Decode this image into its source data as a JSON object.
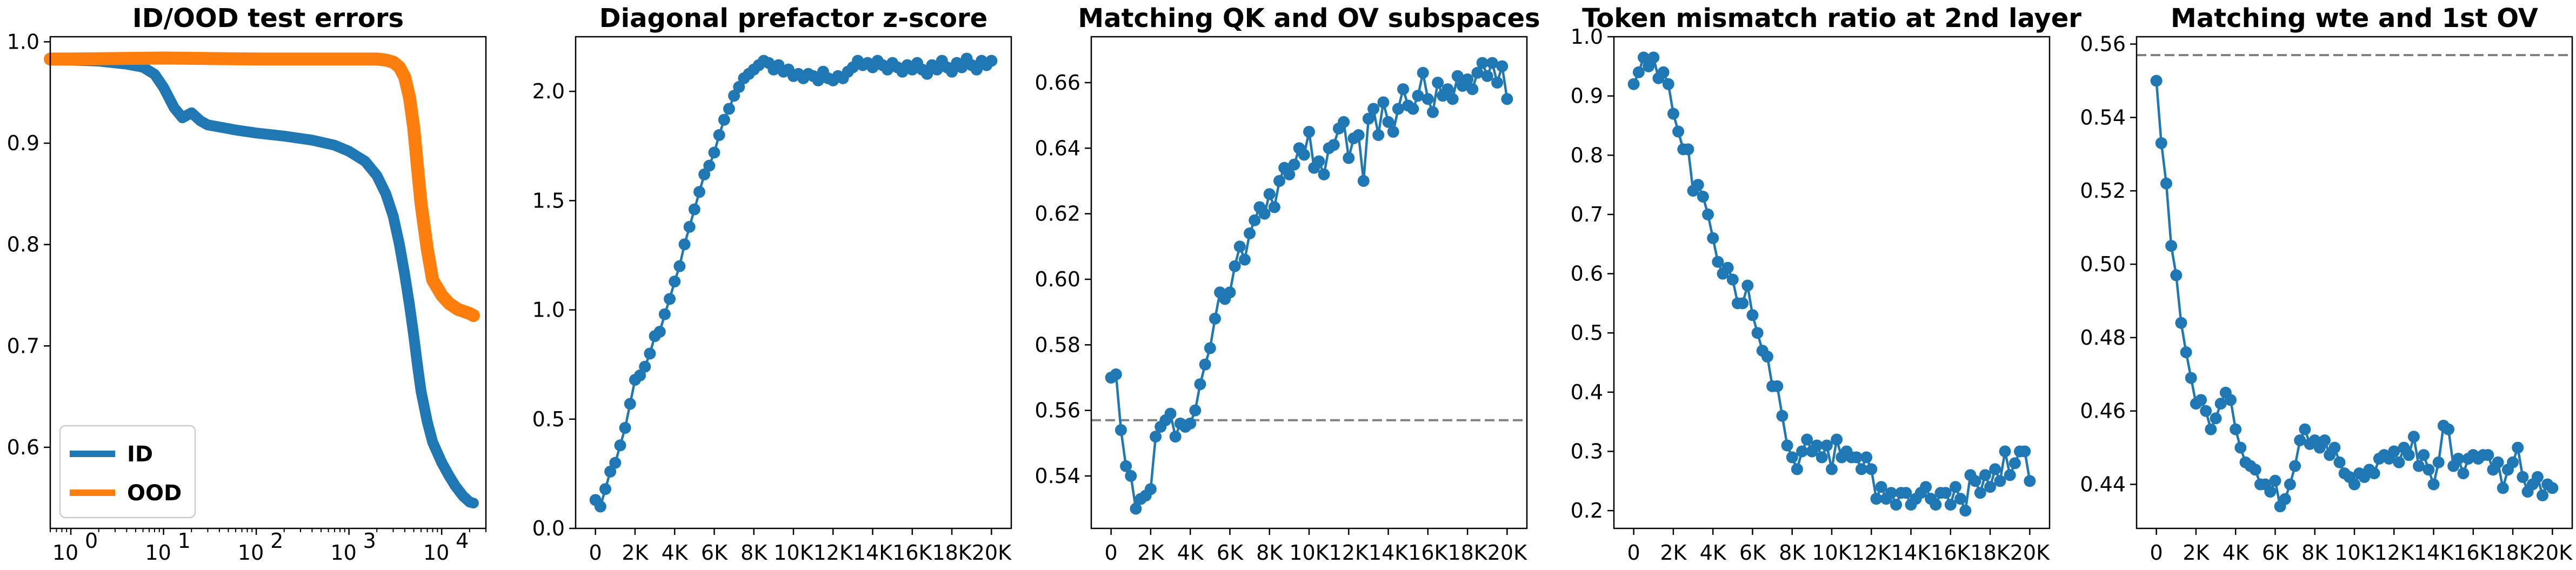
{
  "chart_data": [
    {
      "type": "line",
      "title": "ID/OOD test errors",
      "xscale": "log",
      "xlim": [
        0.6,
        30000
      ],
      "ylim": [
        0.52,
        1.005
      ],
      "xticks": [
        1,
        10,
        100,
        1000,
        10000
      ],
      "xtick_labels": [
        "10",
        "10",
        "10",
        "10",
        "10"
      ],
      "xtick_exponents": [
        "0",
        "1",
        "2",
        "3",
        "4"
      ],
      "yticks": [
        0.6,
        0.7,
        0.8,
        0.9,
        1.0
      ],
      "ytick_labels": [
        "0.6",
        "0.7",
        "0.8",
        "0.9",
        "1.0"
      ],
      "legend": "lower-left",
      "series": [
        {
          "name": "ID",
          "color": "#1f77b4",
          "x": [
            0.6,
            1,
            2,
            4,
            6,
            8,
            10,
            13,
            16,
            20,
            25,
            30,
            40,
            60,
            100,
            200,
            400,
            700,
            1000,
            1500,
            2000,
            2500,
            3000,
            3500,
            4000,
            4500,
            5000,
            5500,
            6000,
            7000,
            8000,
            10000,
            12000,
            14000,
            17000,
            20000,
            22000
          ],
          "y": [
            0.982,
            0.982,
            0.981,
            0.978,
            0.975,
            0.968,
            0.955,
            0.935,
            0.925,
            0.93,
            0.922,
            0.918,
            0.916,
            0.913,
            0.91,
            0.907,
            0.903,
            0.898,
            0.892,
            0.882,
            0.868,
            0.85,
            0.828,
            0.8,
            0.77,
            0.74,
            0.71,
            0.68,
            0.655,
            0.625,
            0.605,
            0.585,
            0.572,
            0.562,
            0.552,
            0.546,
            0.545
          ]
        },
        {
          "name": "OOD",
          "color": "#ff7f0e",
          "x": [
            0.6,
            1,
            10,
            100,
            500,
            1000,
            2000,
            2500,
            3000,
            3500,
            4000,
            4500,
            5000,
            5500,
            6000,
            7000,
            8000,
            10000,
            12000,
            15000,
            20000,
            22000
          ],
          "y": [
            0.983,
            0.983,
            0.984,
            0.983,
            0.983,
            0.983,
            0.983,
            0.982,
            0.98,
            0.975,
            0.965,
            0.945,
            0.915,
            0.875,
            0.84,
            0.795,
            0.765,
            0.75,
            0.742,
            0.736,
            0.732,
            0.73
          ]
        }
      ]
    },
    {
      "type": "line",
      "title": "Diagonal prefactor z-score",
      "xlim": [
        -1000,
        21000
      ],
      "ylim": [
        0.0,
        2.25
      ],
      "xticks": [
        0,
        2000,
        4000,
        6000,
        8000,
        10000,
        12000,
        14000,
        16000,
        18000,
        20000
      ],
      "xtick_labels": [
        "0",
        "2K",
        "4K",
        "6K",
        "8K",
        "10K",
        "12K",
        "14K",
        "16K",
        "18K",
        "20K"
      ],
      "yticks": [
        0.0,
        0.5,
        1.0,
        1.5,
        2.0
      ],
      "ytick_labels": [
        "0.0",
        "0.5",
        "1.0",
        "1.5",
        "2.0"
      ],
      "series": [
        {
          "color": "#1f77b4",
          "x": [
            0,
            250,
            500,
            750,
            1000,
            1250,
            1500,
            1750,
            2000,
            2250,
            2500,
            2750,
            3000,
            3250,
            3500,
            3750,
            4000,
            4250,
            4500,
            4750,
            5000,
            5250,
            5500,
            5750,
            6000,
            6250,
            6500,
            6750,
            7000,
            7250,
            7500,
            7750,
            8000,
            8250,
            8500,
            8750,
            9000,
            9250,
            9500,
            9750,
            10000,
            10250,
            10500,
            10750,
            11000,
            11250,
            11500,
            11750,
            12000,
            12250,
            12500,
            12750,
            13000,
            13250,
            13500,
            13750,
            14000,
            14250,
            14500,
            14750,
            15000,
            15250,
            15500,
            15750,
            16000,
            16250,
            16500,
            16750,
            17000,
            17250,
            17500,
            17750,
            18000,
            18250,
            18500,
            18750,
            19000,
            19250,
            19500,
            19750,
            20000
          ],
          "y": [
            0.13,
            0.1,
            0.18,
            0.26,
            0.3,
            0.38,
            0.46,
            0.57,
            0.68,
            0.7,
            0.74,
            0.8,
            0.88,
            0.9,
            0.98,
            1.05,
            1.13,
            1.2,
            1.3,
            1.38,
            1.46,
            1.54,
            1.62,
            1.66,
            1.72,
            1.8,
            1.87,
            1.92,
            1.98,
            2.02,
            2.06,
            2.08,
            2.1,
            2.12,
            2.14,
            2.13,
            2.1,
            2.12,
            2.09,
            2.1,
            2.07,
            2.08,
            2.06,
            2.08,
            2.07,
            2.05,
            2.09,
            2.06,
            2.05,
            2.07,
            2.06,
            2.09,
            2.11,
            2.14,
            2.12,
            2.13,
            2.11,
            2.14,
            2.12,
            2.1,
            2.13,
            2.11,
            2.09,
            2.12,
            2.1,
            2.13,
            2.1,
            2.08,
            2.12,
            2.1,
            2.14,
            2.11,
            2.09,
            2.13,
            2.11,
            2.15,
            2.12,
            2.1,
            2.14,
            2.12,
            2.14
          ]
        }
      ]
    },
    {
      "type": "line",
      "title": "Matching QK and OV subspaces",
      "xlim": [
        -1000,
        21000
      ],
      "ylim": [
        0.524,
        0.674
      ],
      "xticks": [
        0,
        2000,
        4000,
        6000,
        8000,
        10000,
        12000,
        14000,
        16000,
        18000,
        20000
      ],
      "xtick_labels": [
        "0",
        "2K",
        "4K",
        "6K",
        "8K",
        "10K",
        "12K",
        "14K",
        "16K",
        "18K",
        "20K"
      ],
      "yticks": [
        0.54,
        0.56,
        0.58,
        0.6,
        0.62,
        0.64,
        0.66
      ],
      "ytick_labels": [
        "0.54",
        "0.56",
        "0.58",
        "0.60",
        "0.62",
        "0.64",
        "0.66"
      ],
      "baseline": 0.557,
      "series": [
        {
          "color": "#1f77b4",
          "x": [
            0,
            250,
            500,
            750,
            1000,
            1250,
            1500,
            1750,
            2000,
            2250,
            2500,
            2750,
            3000,
            3250,
            3500,
            3750,
            4000,
            4250,
            4500,
            4750,
            5000,
            5250,
            5500,
            5750,
            6000,
            6250,
            6500,
            6750,
            7000,
            7250,
            7500,
            7750,
            8000,
            8250,
            8500,
            8750,
            9000,
            9250,
            9500,
            9750,
            10000,
            10250,
            10500,
            10750,
            11000,
            11250,
            11500,
            11750,
            12000,
            12250,
            12500,
            12750,
            13000,
            13250,
            13500,
            13750,
            14000,
            14250,
            14500,
            14750,
            15000,
            15250,
            15500,
            15750,
            16000,
            16250,
            16500,
            16750,
            17000,
            17250,
            17500,
            17750,
            18000,
            18250,
            18500,
            18750,
            19000,
            19250,
            19500,
            19750,
            20000
          ],
          "y": [
            0.57,
            0.571,
            0.554,
            0.543,
            0.54,
            0.53,
            0.533,
            0.534,
            0.536,
            0.552,
            0.555,
            0.557,
            0.559,
            0.552,
            0.556,
            0.555,
            0.556,
            0.56,
            0.568,
            0.574,
            0.579,
            0.588,
            0.596,
            0.594,
            0.596,
            0.604,
            0.61,
            0.606,
            0.614,
            0.618,
            0.622,
            0.62,
            0.626,
            0.622,
            0.63,
            0.634,
            0.632,
            0.635,
            0.64,
            0.638,
            0.645,
            0.634,
            0.636,
            0.632,
            0.64,
            0.641,
            0.646,
            0.648,
            0.637,
            0.643,
            0.644,
            0.63,
            0.649,
            0.652,
            0.644,
            0.654,
            0.648,
            0.645,
            0.652,
            0.658,
            0.653,
            0.652,
            0.656,
            0.663,
            0.655,
            0.651,
            0.66,
            0.656,
            0.658,
            0.655,
            0.662,
            0.659,
            0.661,
            0.658,
            0.663,
            0.666,
            0.662,
            0.666,
            0.66,
            0.665,
            0.655
          ]
        }
      ]
    },
    {
      "type": "line",
      "title": "Token mismatch ratio at 2nd layer",
      "xlim": [
        -1000,
        21000
      ],
      "ylim": [
        0.17,
        1.0
      ],
      "xticks": [
        0,
        2000,
        4000,
        6000,
        8000,
        10000,
        12000,
        14000,
        16000,
        18000,
        20000
      ],
      "xtick_labels": [
        "0",
        "2K",
        "4K",
        "6K",
        "8K",
        "10K",
        "12K",
        "14K",
        "16K",
        "18K",
        "20K"
      ],
      "yticks": [
        0.2,
        0.3,
        0.4,
        0.5,
        0.6,
        0.7,
        0.8,
        0.9,
        1.0
      ],
      "ytick_labels": [
        "0.2",
        "0.3",
        "0.4",
        "0.5",
        "0.6",
        "0.7",
        "0.8",
        "0.9",
        "1.0"
      ],
      "series": [
        {
          "color": "#1f77b4",
          "x": [
            0,
            250,
            500,
            750,
            1000,
            1250,
            1500,
            1750,
            2000,
            2250,
            2500,
            2750,
            3000,
            3250,
            3500,
            3750,
            4000,
            4250,
            4500,
            4750,
            5000,
            5250,
            5500,
            5750,
            6000,
            6250,
            6500,
            6750,
            7000,
            7250,
            7500,
            7750,
            8000,
            8250,
            8500,
            8750,
            9000,
            9250,
            9500,
            9750,
            10000,
            10250,
            10500,
            10750,
            11000,
            11250,
            11500,
            11750,
            12000,
            12250,
            12500,
            12750,
            13000,
            13250,
            13500,
            13750,
            14000,
            14250,
            14500,
            14750,
            15000,
            15250,
            15500,
            15750,
            16000,
            16250,
            16500,
            16750,
            17000,
            17250,
            17500,
            17750,
            18000,
            18250,
            18500,
            18750,
            19000,
            19250,
            19500,
            19750,
            20000
          ],
          "y": [
            0.92,
            0.94,
            0.965,
            0.95,
            0.965,
            0.93,
            0.94,
            0.92,
            0.87,
            0.84,
            0.81,
            0.81,
            0.74,
            0.75,
            0.73,
            0.7,
            0.66,
            0.62,
            0.6,
            0.61,
            0.59,
            0.55,
            0.55,
            0.58,
            0.53,
            0.5,
            0.47,
            0.46,
            0.41,
            0.41,
            0.36,
            0.31,
            0.29,
            0.27,
            0.3,
            0.32,
            0.3,
            0.31,
            0.29,
            0.31,
            0.27,
            0.32,
            0.29,
            0.3,
            0.29,
            0.29,
            0.27,
            0.29,
            0.27,
            0.22,
            0.24,
            0.22,
            0.23,
            0.21,
            0.23,
            0.23,
            0.21,
            0.22,
            0.23,
            0.24,
            0.22,
            0.21,
            0.23,
            0.23,
            0.21,
            0.24,
            0.22,
            0.2,
            0.26,
            0.25,
            0.23,
            0.26,
            0.24,
            0.27,
            0.25,
            0.3,
            0.26,
            0.28,
            0.3,
            0.3,
            0.25
          ]
        }
      ]
    },
    {
      "type": "line",
      "title": "Matching wte and 1st OV",
      "xlim": [
        -1000,
        21000
      ],
      "ylim": [
        0.428,
        0.562
      ],
      "xticks": [
        0,
        2000,
        4000,
        6000,
        8000,
        10000,
        12000,
        14000,
        16000,
        18000,
        20000
      ],
      "xtick_labels": [
        "0",
        "2K",
        "4K",
        "6K",
        "8K",
        "10K",
        "12K",
        "14K",
        "16K",
        "18K",
        "20K"
      ],
      "yticks": [
        0.44,
        0.46,
        0.48,
        0.5,
        0.52,
        0.54,
        0.56
      ],
      "ytick_labels": [
        "0.44",
        "0.46",
        "0.48",
        "0.50",
        "0.52",
        "0.54",
        "0.56"
      ],
      "baseline": 0.557,
      "series": [
        {
          "color": "#1f77b4",
          "x": [
            0,
            250,
            500,
            750,
            1000,
            1250,
            1500,
            1750,
            2000,
            2250,
            2500,
            2750,
            3000,
            3250,
            3500,
            3750,
            4000,
            4250,
            4500,
            4750,
            5000,
            5250,
            5500,
            5750,
            6000,
            6250,
            6500,
            6750,
            7000,
            7250,
            7500,
            7750,
            8000,
            8250,
            8500,
            8750,
            9000,
            9250,
            9500,
            9750,
            10000,
            10250,
            10500,
            10750,
            11000,
            11250,
            11500,
            11750,
            12000,
            12250,
            12500,
            12750,
            13000,
            13250,
            13500,
            13750,
            14000,
            14250,
            14500,
            14750,
            15000,
            15250,
            15500,
            15750,
            16000,
            16250,
            16500,
            16750,
            17000,
            17250,
            17500,
            17750,
            18000,
            18250,
            18500,
            18750,
            19000,
            19250,
            19500,
            19750,
            20000
          ],
          "y": [
            0.55,
            0.533,
            0.522,
            0.505,
            0.497,
            0.484,
            0.476,
            0.469,
            0.462,
            0.463,
            0.46,
            0.455,
            0.458,
            0.462,
            0.465,
            0.463,
            0.455,
            0.45,
            0.446,
            0.445,
            0.444,
            0.44,
            0.44,
            0.438,
            0.441,
            0.434,
            0.436,
            0.44,
            0.445,
            0.452,
            0.455,
            0.451,
            0.452,
            0.45,
            0.452,
            0.448,
            0.45,
            0.446,
            0.443,
            0.442,
            0.44,
            0.443,
            0.442,
            0.444,
            0.443,
            0.447,
            0.448,
            0.447,
            0.449,
            0.446,
            0.45,
            0.448,
            0.453,
            0.445,
            0.448,
            0.444,
            0.44,
            0.446,
            0.456,
            0.455,
            0.445,
            0.447,
            0.443,
            0.447,
            0.448,
            0.447,
            0.448,
            0.448,
            0.444,
            0.446,
            0.439,
            0.444,
            0.446,
            0.45,
            0.442,
            0.438,
            0.44,
            0.442,
            0.437,
            0.44,
            0.439
          ]
        }
      ]
    }
  ]
}
